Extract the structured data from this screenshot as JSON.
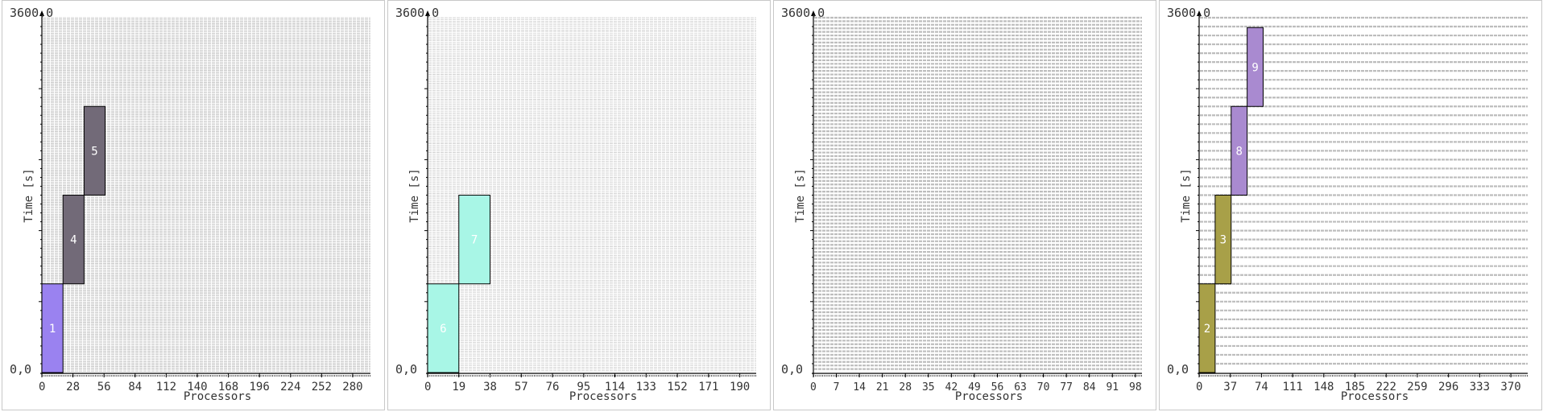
{
  "chart_data": [
    {
      "type": "bar",
      "ylabel": "Time [s]",
      "xlabel": "Processors",
      "y_top_label": "3600,0",
      "y_bottom_label": "0,0",
      "ylim": [
        0,
        3600
      ],
      "xlim": [
        0,
        296
      ],
      "xticks": [
        0,
        28,
        56,
        84,
        112,
        140,
        168,
        196,
        224,
        252,
        280
      ],
      "rows": 296,
      "bars": [
        {
          "label": "1",
          "x0": 0,
          "x1": 19,
          "y0": 0,
          "y1": 900,
          "color": "#9a82f0"
        },
        {
          "label": "4",
          "x0": 19,
          "x1": 38,
          "y0": 900,
          "y1": 1800,
          "color": "#726a78"
        },
        {
          "label": "5",
          "x0": 38,
          "x1": 57,
          "y0": 1800,
          "y1": 2700,
          "color": "#726a78"
        }
      ]
    },
    {
      "type": "bar",
      "ylabel": "Time [s]",
      "xlabel": "Processors",
      "y_top_label": "3600,0",
      "y_bottom_label": "0,0",
      "ylim": [
        0,
        3600
      ],
      "xlim": [
        0,
        200
      ],
      "xticks": [
        0,
        19,
        38,
        57,
        76,
        95,
        114,
        133,
        152,
        171,
        190
      ],
      "rows": 200,
      "bars": [
        {
          "label": "6",
          "x0": 0,
          "x1": 19,
          "y0": 0,
          "y1": 900,
          "color": "#a8f6e6"
        },
        {
          "label": "7",
          "x0": 19,
          "x1": 38,
          "y0": 900,
          "y1": 1800,
          "color": "#a8f6e6"
        }
      ]
    },
    {
      "type": "bar",
      "ylabel": "Time [s]",
      "xlabel": "Processors",
      "y_top_label": "3600,0",
      "y_bottom_label": "0,0",
      "ylim": [
        0,
        3600
      ],
      "xlim": [
        0,
        100
      ],
      "xticks": [
        0,
        7,
        14,
        21,
        28,
        35,
        42,
        49,
        56,
        63,
        70,
        77,
        84,
        91,
        98
      ],
      "rows": 100,
      "bars": []
    },
    {
      "type": "bar",
      "ylabel": "Time [s]",
      "xlabel": "Processors",
      "y_top_label": "3600,0",
      "y_bottom_label": "0,0",
      "ylim": [
        0,
        3600
      ],
      "xlim": [
        0,
        390
      ],
      "xticks": [
        0,
        37,
        74,
        111,
        148,
        185,
        222,
        259,
        296,
        333,
        370
      ],
      "rows": 40,
      "bars": [
        {
          "label": "2",
          "x0": 0,
          "x1": 19,
          "y0": 0,
          "y1": 900,
          "color": "#a8a048"
        },
        {
          "label": "3",
          "x0": 19,
          "x1": 38,
          "y0": 900,
          "y1": 1800,
          "color": "#a8a048"
        },
        {
          "label": "8",
          "x0": 38,
          "x1": 57,
          "y0": 1800,
          "y1": 2700,
          "color": "#a98ad0"
        },
        {
          "label": "9",
          "x0": 57,
          "x1": 76,
          "y0": 2700,
          "y1": 3500,
          "color": "#a98ad0"
        }
      ]
    }
  ]
}
